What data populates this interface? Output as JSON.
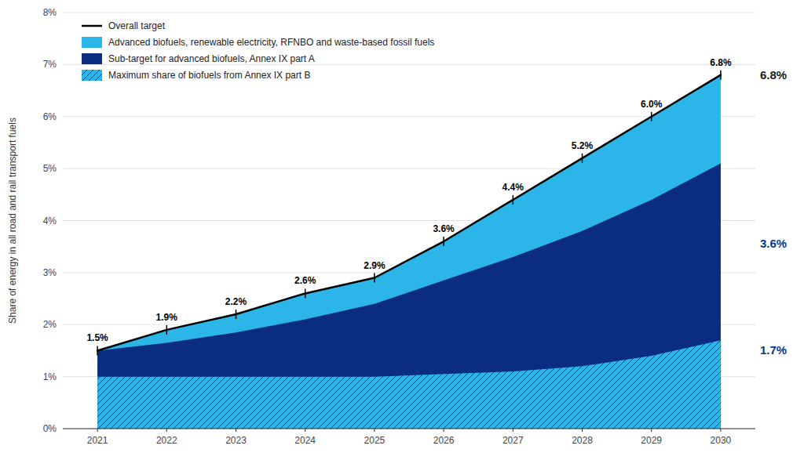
{
  "chart_data": {
    "type": "area",
    "ylabel": "Share of energy in all road and rail transport fuels",
    "x": [
      2021,
      2022,
      2023,
      2024,
      2025,
      2026,
      2027,
      2028,
      2029,
      2030
    ],
    "xlim": [
      2020.5,
      2030.5
    ],
    "xticks": [
      2021,
      2022,
      2023,
      2024,
      2025,
      2026,
      2027,
      2028,
      2029,
      2030
    ],
    "ylim": [
      0,
      8
    ],
    "yticks": [
      {
        "value": 0,
        "label": "0%"
      },
      {
        "value": 1,
        "label": "1%"
      },
      {
        "value": 2,
        "label": "2%"
      },
      {
        "value": 3,
        "label": "3%"
      },
      {
        "value": 4,
        "label": "4%"
      },
      {
        "value": 5,
        "label": "5%"
      },
      {
        "value": 6,
        "label": "6%"
      },
      {
        "value": 7,
        "label": "7%"
      },
      {
        "value": 8,
        "label": "8%"
      }
    ],
    "grid": true,
    "legend": "upper left",
    "stacked": false,
    "series": [
      {
        "name": "Overall target",
        "type": "line",
        "color": "#000000",
        "marker": "vline",
        "values": [
          1.5,
          1.9,
          2.2,
          2.6,
          2.9,
          3.6,
          4.4,
          5.2,
          6.0,
          6.8
        ],
        "data_labels": true,
        "value_labels": [
          "1.5%",
          "1.9%",
          "2.2%",
          "2.6%",
          "2.9%",
          "3.6%",
          "4.4%",
          "5.2%",
          "6.0%",
          "6.8%"
        ]
      },
      {
        "name": "Advanced biofuels, renewable electricity, RFNBO and waste-based fossil fuels",
        "type": "area",
        "color": "#2BB5E8",
        "values": [
          1.5,
          1.9,
          2.2,
          2.6,
          2.9,
          3.6,
          4.4,
          5.2,
          6.0,
          6.8
        ]
      },
      {
        "name": "Sub-target for advanced biofuels, Annex IX part A",
        "type": "area",
        "color": "#0A2D82",
        "values": [
          1.5,
          1.65,
          1.85,
          2.1,
          2.4,
          2.85,
          3.3,
          3.8,
          4.4,
          5.1
        ]
      },
      {
        "name": "Maximum share of biofuels from Annex IX part B",
        "type": "area",
        "color": "#2BB5E8",
        "values": [
          1.0,
          1.0,
          1.0,
          1.0,
          1.0,
          1.05,
          1.1,
          1.2,
          1.4,
          1.7
        ]
      }
    ],
    "annotations": [
      {
        "text": "6.8%",
        "y": 6.8,
        "color": "#1a1a1a"
      },
      {
        "text": "3.6%",
        "y": 3.55,
        "color": "#003b8e"
      },
      {
        "text": "1.7%",
        "y": 1.5,
        "color": "#003b8e"
      }
    ]
  }
}
